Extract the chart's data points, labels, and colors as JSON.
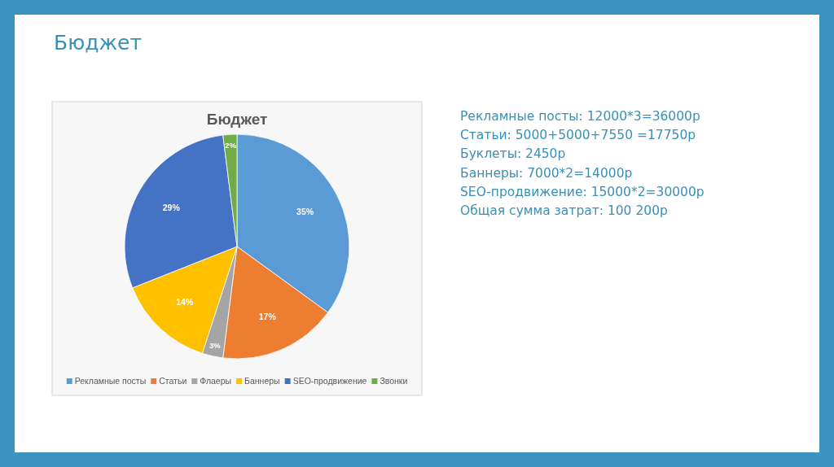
{
  "chart_data": {
    "type": "pie",
    "title": "Бюджет",
    "subtitle": "Бюджет",
    "categories": [
      "Рекламные посты",
      "Статьи",
      "Флаеры",
      "Баннеры",
      "SEO-продвижение",
      "Звонки"
    ],
    "values": [
      35,
      17,
      3,
      14,
      29,
      2
    ],
    "value_labels": [
      "35%",
      "17%",
      "3%",
      "14%",
      "29%",
      "2%"
    ],
    "colors": [
      "#5b9bd5",
      "#ed7d31",
      "#a5a5a5",
      "#ffc000",
      "#4472c4",
      "#70ad47"
    ],
    "legend": "bottom",
    "annotations": [
      "Рекламные посты: 12000*3=36000р",
      "Статьи: 5000+5000+7550 =17750р",
      "Буклеты: 2450р",
      "Баннеры: 7000*2=14000р",
      "SEO-продвижение: 15000*2=30000р",
      "Общая сумма затрат: 100 200р"
    ]
  }
}
